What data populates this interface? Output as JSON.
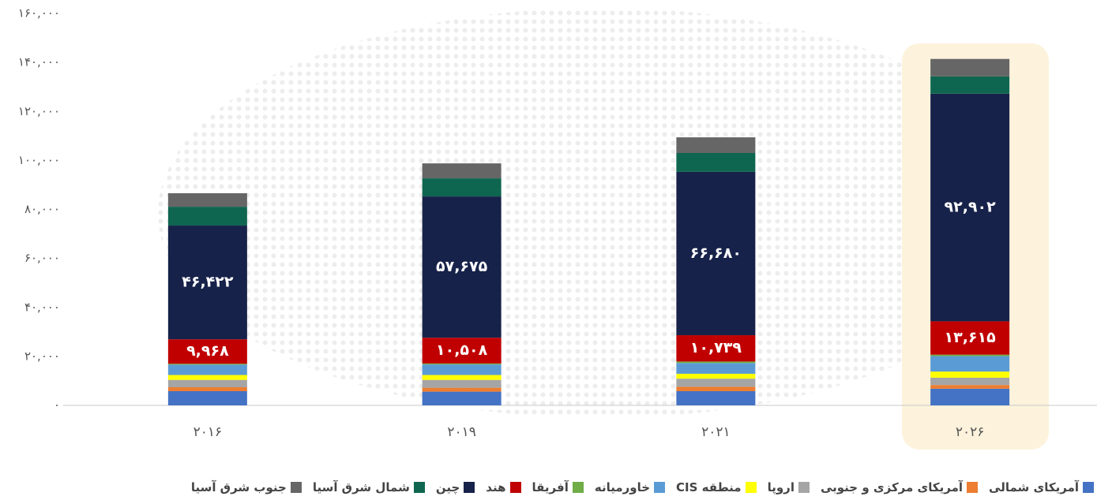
{
  "chart_data": {
    "type": "stacked_bar",
    "categories": [
      "۲۰۱۶",
      "۲۰۱۹",
      "۲۰۲۱",
      "۲۰۲۶"
    ],
    "ylim": [
      0,
      160000
    ],
    "yticks": [
      {
        "value": 0,
        "label": "۰"
      },
      {
        "value": 20000,
        "label": "۲۰,۰۰۰"
      },
      {
        "value": 40000,
        "label": "۴۰,۰۰۰"
      },
      {
        "value": 60000,
        "label": "۶۰,۰۰۰"
      },
      {
        "value": 80000,
        "label": "۸۰,۰۰۰"
      },
      {
        "value": 100000,
        "label": "۱۰۰,۰۰۰"
      },
      {
        "value": 120000,
        "label": "۱۲۰,۰۰۰"
      },
      {
        "value": 140000,
        "label": "۱۴۰,۰۰۰"
      },
      {
        "value": 160000,
        "label": "۱۶۰,۰۰۰"
      }
    ],
    "grid": false,
    "series": [
      {
        "name": "آمریکای شمالی",
        "color": "#4472c4",
        "values": [
          5800,
          5600,
          5800,
          6800
        ]
      },
      {
        "name": "آمریکای مرکزی و جنوبی",
        "color": "#ed7d31",
        "values": [
          1600,
          1600,
          1800,
          1500
        ]
      },
      {
        "name": "اروپا",
        "color": "#a5a5a5",
        "values": [
          3000,
          3200,
          3300,
          3000
        ]
      },
      {
        "name": "منطقه CIS",
        "color": "#ffff00",
        "values": [
          2000,
          2000,
          2000,
          2500
        ]
      },
      {
        "name": "خاورمیانه",
        "color": "#5b9bd5",
        "values": [
          4200,
          4300,
          4400,
          6300
        ]
      },
      {
        "name": "آفریقا",
        "color": "#70ad47",
        "values": [
          400,
          400,
          600,
          600
        ]
      },
      {
        "name": "هند",
        "color": "#c00000",
        "values": [
          9968,
          10508,
          10739,
          13615
        ],
        "value_labels": [
          "۹,۹۶۸",
          "۱۰,۵۰۸",
          "۱۰,۷۳۹",
          "۱۳,۶۱۵"
        ]
      },
      {
        "name": "چین",
        "color": "#17224a",
        "values": [
          46422,
          57675,
          66680,
          92902
        ],
        "value_labels": [
          "۴۶,۴۲۲",
          "۵۷,۶۷۵",
          "۶۶,۶۸۰",
          "۹۲,۹۰۲"
        ]
      },
      {
        "name": "شمال شرق آسیا",
        "color": "#0f6650",
        "values": [
          7700,
          7400,
          7700,
          7100
        ]
      },
      {
        "name": "جنوب شرق آسیا",
        "color": "#666666",
        "values": [
          5500,
          6100,
          6400,
          7100
        ]
      }
    ],
    "legend": "bottom"
  }
}
